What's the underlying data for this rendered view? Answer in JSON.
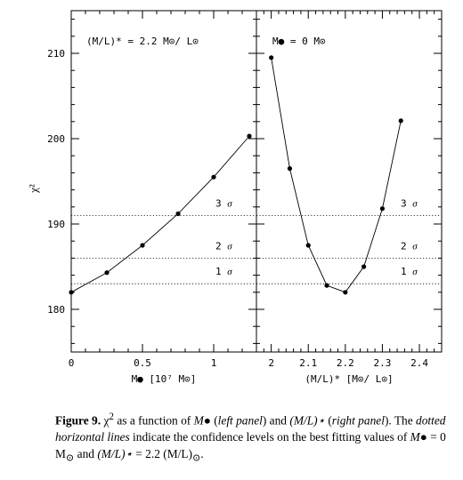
{
  "chart_data": [
    {
      "type": "line",
      "panel": "left",
      "annotation": "(M/L)* = 2.2 M⊙/ L⊙",
      "xlabel": "M● [10⁷ M⊙]",
      "ylabel": "χ²",
      "xlim": [
        0,
        1.3
      ],
      "ylim": [
        175,
        215
      ],
      "x_ticks": [
        0,
        0.5,
        1
      ],
      "x_tick_labels": [
        "0",
        "0.5",
        "1"
      ],
      "y_ticks": [
        180,
        190,
        200,
        210
      ],
      "y_tick_labels": [
        "180",
        "190",
        "200",
        "210"
      ],
      "series": [
        {
          "x": [
            0,
            0.25,
            0.5,
            0.75,
            1.0,
            1.25
          ],
          "y": [
            182.0,
            184.3,
            187.5,
            191.2,
            195.5,
            200.3
          ]
        }
      ]
    },
    {
      "type": "line",
      "panel": "right",
      "annotation": "M● = 0 M⊙",
      "xlabel": "(M/L)* [M⊙/ L⊙]",
      "xlim": [
        1.96,
        2.46
      ],
      "ylim": [
        175,
        215
      ],
      "x_ticks": [
        2,
        2.1,
        2.2,
        2.3,
        2.4
      ],
      "x_tick_labels": [
        "2",
        "2.1",
        "2.2",
        "2.3",
        "2.4"
      ],
      "series": [
        {
          "x": [
            2.0,
            2.05,
            2.1,
            2.15,
            2.2,
            2.25,
            2.3,
            2.35
          ],
          "y": [
            209.5,
            196.5,
            187.5,
            182.8,
            182.0,
            185.0,
            191.8,
            202.1
          ]
        }
      ]
    }
  ],
  "confidence_levels": [
    {
      "label": "1",
      "y": 183.0
    },
    {
      "label": "2",
      "y": 186.0
    },
    {
      "label": "3",
      "y": 191.0
    }
  ],
  "sigma_symbol": "σ",
  "caption": {
    "label": "Figure 9.",
    "chi": "χ",
    "sq": "2",
    "t1": " as a function of ",
    "m_bh": "M●",
    "t2": " (",
    "left": "left panel",
    "t3": ") and ",
    "ml": "(M/L)⋆",
    "t4": " (",
    "right": "right panel",
    "t5": "). The ",
    "dotted": "dotted horizontal lines",
    "t6": " indicate the confidence levels on the best fitting values of ",
    "m_bh2": "M●",
    "t7": " = 0 M",
    "sun1": "⊙",
    "t8": " and ",
    "ml2": "(M/L)⋆",
    "t9": " = 2.2 (M/L)",
    "sun2": "⊙",
    "t10": "."
  }
}
